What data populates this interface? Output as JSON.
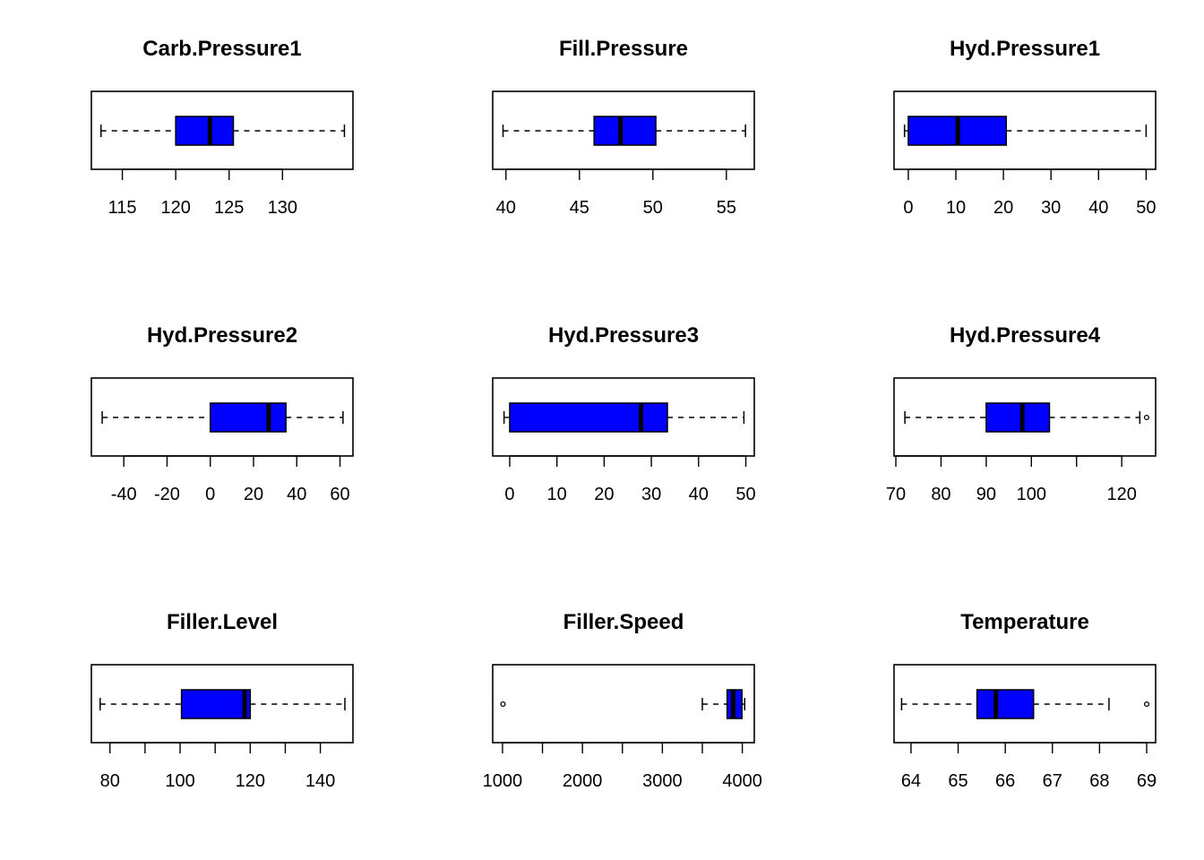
{
  "chart_data": [
    {
      "type": "boxplot",
      "title": "Carb.Pressure1",
      "orientation": "horizontal",
      "xlim": [
        112.1,
        136.6
      ],
      "ticks": [
        115,
        120,
        125,
        130
      ],
      "tick_labels": [
        "115",
        "120",
        "125",
        "130"
      ],
      "stats": {
        "min": 113.0,
        "q1": 120.0,
        "median": 123.2,
        "q3": 125.4,
        "max": 135.8
      },
      "outliers": [],
      "box_color": "#0000FF"
    },
    {
      "type": "boxplot",
      "title": "Fill.Pressure",
      "orientation": "horizontal",
      "xlim": [
        39.1,
        56.9
      ],
      "ticks": [
        40,
        45,
        50,
        55
      ],
      "tick_labels": [
        "40",
        "45",
        "50",
        "55"
      ],
      "stats": {
        "min": 39.8,
        "q1": 46.0,
        "median": 47.8,
        "q3": 50.2,
        "max": 56.3
      },
      "outliers": [],
      "box_color": "#0000FF"
    },
    {
      "type": "boxplot",
      "title": "Hyd.Pressure1",
      "orientation": "horizontal",
      "xlim": [
        -3.0,
        52.0
      ],
      "ticks": [
        0,
        10,
        20,
        30,
        40,
        50
      ],
      "tick_labels": [
        "0",
        "10",
        "20",
        "30",
        "40",
        "50"
      ],
      "stats": {
        "min": -0.8,
        "q1": 0.0,
        "median": 10.4,
        "q3": 20.6,
        "max": 50.0
      },
      "outliers": [],
      "box_color": "#0000FF"
    },
    {
      "type": "boxplot",
      "title": "Hyd.Pressure2",
      "orientation": "horizontal",
      "xlim": [
        -55.0,
        66.0
      ],
      "ticks": [
        -40,
        -20,
        0,
        20,
        40,
        60
      ],
      "tick_labels": [
        "-40",
        "-20",
        "0",
        "20",
        "40",
        "60"
      ],
      "stats": {
        "min": -50.0,
        "q1": 0.0,
        "median": 27.0,
        "q3": 35.0,
        "max": 61.4
      },
      "outliers": [],
      "box_color": "#0000FF"
    },
    {
      "type": "boxplot",
      "title": "Hyd.Pressure3",
      "orientation": "horizontal",
      "xlim": [
        -3.6,
        51.8
      ],
      "ticks": [
        0,
        10,
        20,
        30,
        40,
        50
      ],
      "tick_labels": [
        "0",
        "10",
        "20",
        "30",
        "40",
        "50"
      ],
      "stats": {
        "min": -1.2,
        "q1": 0.0,
        "median": 27.8,
        "q3": 33.4,
        "max": 49.6
      },
      "outliers": [],
      "box_color": "#0000FF"
    },
    {
      "type": "boxplot",
      "title": "Hyd.Pressure4",
      "orientation": "horizontal",
      "xlim": [
        69.6,
        127.5
      ],
      "ticks": [
        70,
        80,
        90,
        100,
        110,
        120
      ],
      "tick_labels": [
        "70",
        "80",
        "90",
        "100",
        "",
        "120"
      ],
      "stats": {
        "min": 72.0,
        "q1": 90.0,
        "median": 98.0,
        "q3": 104.0,
        "max": 124.0
      },
      "outliers": [
        125.5
      ],
      "box_color": "#0000FF"
    },
    {
      "type": "boxplot",
      "title": "Filler.Level",
      "orientation": "horizontal",
      "xlim": [
        74.7,
        149.3
      ],
      "ticks": [
        80,
        90,
        100,
        110,
        120,
        130,
        140
      ],
      "tick_labels": [
        "80",
        "",
        "100",
        "",
        "120",
        "",
        "140"
      ],
      "stats": {
        "min": 77.2,
        "q1": 100.4,
        "median": 118.4,
        "q3": 120.0,
        "max": 147.0
      },
      "outliers": [],
      "box_color": "#0000FF"
    },
    {
      "type": "boxplot",
      "title": "Filler.Speed",
      "orientation": "horizontal",
      "xlim": [
        877.5,
        4150.0
      ],
      "ticks": [
        1000,
        1500,
        2000,
        2500,
        3000,
        3500,
        4000
      ],
      "tick_labels": [
        "1000",
        "",
        "2000",
        "",
        "3000",
        "",
        "4000"
      ],
      "stats": {
        "min": 3500,
        "q1": 3810,
        "median": 3885,
        "q3": 3996,
        "max": 4030
      },
      "outliers": [
        1006
      ],
      "box_color": "#0000FF"
    },
    {
      "type": "boxplot",
      "title": "Temperature",
      "orientation": "horizontal",
      "xlim": [
        63.64,
        69.19
      ],
      "ticks": [
        64,
        65,
        66,
        67,
        68,
        69
      ],
      "tick_labels": [
        "64",
        "65",
        "66",
        "67",
        "68",
        "69"
      ],
      "stats": {
        "min": 63.8,
        "q1": 65.4,
        "median": 65.8,
        "q3": 66.6,
        "max": 68.2
      },
      "outliers": [
        69.0
      ],
      "box_color": "#0000FF"
    }
  ]
}
